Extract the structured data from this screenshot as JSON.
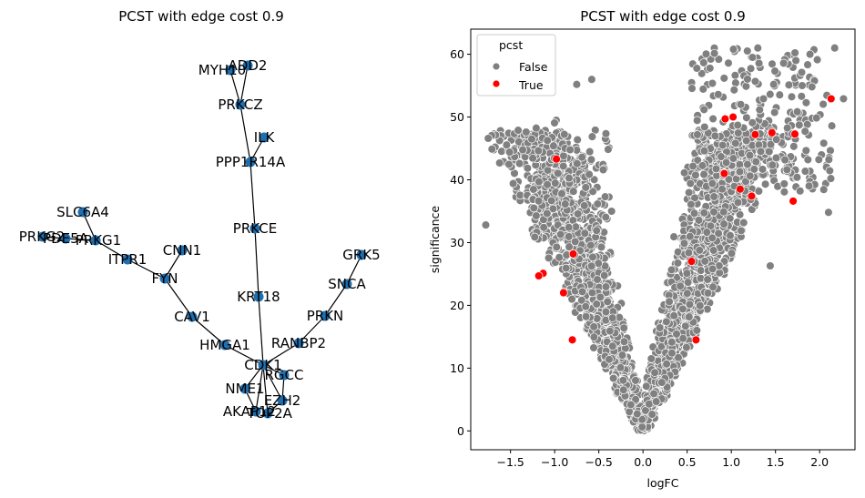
{
  "chart_data": [
    {
      "type": "network",
      "title": "PCST with edge cost 0.9",
      "nodes": [
        "ADD2",
        "MYH10",
        "PRKCZ",
        "ILK",
        "PPP1R14A",
        "PRKCE",
        "KRT18",
        "CDK1",
        "HMGA1",
        "CAV1",
        "FYN",
        "CNN1",
        "ITPR1",
        "PRKG1",
        "PDE5A",
        "PRKG2",
        "SLC6A4",
        "RANBP2",
        "PRKN",
        "SNCA",
        "GRK5",
        "RGCC",
        "NME1",
        "EZH2",
        "AKAP12",
        "TOP2A"
      ],
      "edges": [
        [
          "ADD2",
          "PRKCZ"
        ],
        [
          "MYH10",
          "PRKCZ"
        ],
        [
          "PRKCZ",
          "PPP1R14A"
        ],
        [
          "ILK",
          "PPP1R14A"
        ],
        [
          "PPP1R14A",
          "PRKCE"
        ],
        [
          "PRKCE",
          "KRT18"
        ],
        [
          "KRT18",
          "CDK1"
        ],
        [
          "CDK1",
          "HMGA1"
        ],
        [
          "HMGA1",
          "CAV1"
        ],
        [
          "CAV1",
          "FYN"
        ],
        [
          "FYN",
          "CNN1"
        ],
        [
          "FYN",
          "ITPR1"
        ],
        [
          "ITPR1",
          "PRKG1"
        ],
        [
          "PRKG1",
          "SLC6A4"
        ],
        [
          "PRKG1",
          "PDE5A"
        ],
        [
          "PDE5A",
          "PRKG2"
        ],
        [
          "CDK1",
          "RANBP2"
        ],
        [
          "RANBP2",
          "PRKN"
        ],
        [
          "PRKN",
          "SNCA"
        ],
        [
          "SNCA",
          "GRK5"
        ],
        [
          "CDK1",
          "RGCC"
        ],
        [
          "CDK1",
          "NME1"
        ],
        [
          "CDK1",
          "EZH2"
        ],
        [
          "CDK1",
          "AKAP12"
        ],
        [
          "CDK1",
          "TOP2A"
        ],
        [
          "NME1",
          "AKAP12"
        ],
        [
          "RGCC",
          "EZH2"
        ],
        [
          "EZH2",
          "TOP2A"
        ]
      ]
    },
    {
      "type": "scatter",
      "title": "PCST with edge cost 0.9",
      "xlabel": "logFC",
      "ylabel": "significance",
      "xlim": [
        -1.95,
        2.4
      ],
      "ylim": [
        -3,
        64
      ],
      "xticks": [
        -1.5,
        -1.0,
        -0.5,
        0.0,
        0.5,
        1.0,
        1.5,
        2.0
      ],
      "xtick_labels": [
        "−1.5",
        "−1.0",
        "−0.5",
        "0.0",
        "0.5",
        "1.0",
        "1.5",
        "2.0"
      ],
      "yticks": [
        0,
        10,
        20,
        30,
        40,
        50,
        60
      ],
      "yticks_labels": [
        "0",
        "10",
        "20",
        "30",
        "40",
        "50",
        "60"
      ],
      "legend": {
        "title": "pcst",
        "placement": "top-left",
        "entries": [
          {
            "label": "False",
            "color": "#808080"
          },
          {
            "label": "True",
            "color": "#ff0000"
          }
        ]
      },
      "series": [
        {
          "name": "True",
          "color": "#ff0000",
          "x": [
            2.13,
            1.02,
            0.93,
            1.46,
            1.72,
            1.27,
            1.23,
            1.7,
            -1.13,
            -1.18,
            -0.79,
            -0.98,
            -0.8,
            0.6,
            0.92,
            -0.9,
            0.55,
            1.1
          ],
          "y": [
            52.9,
            50.0,
            49.7,
            47.5,
            47.3,
            47.2,
            37.4,
            36.6,
            25.1,
            24.7,
            28.2,
            43.3,
            14.5,
            14.5,
            41.0,
            22.0,
            27.0,
            38.5
          ]
        },
        {
          "name": "False",
          "color": "#808080",
          "description": "volcano-shaped cloud of ~2000 genes, |logFC| grows with significance",
          "extremes": [
            {
              "x": -1.78,
              "y": 32.8
            },
            {
              "x": -1.47,
              "y": 39.4
            },
            {
              "x": -0.58,
              "y": 56.0
            },
            {
              "x": -0.75,
              "y": 55.2
            },
            {
              "x": 1.44,
              "y": 26.3
            },
            {
              "x": 2.1,
              "y": 34.8
            },
            {
              "x": 2.27,
              "y": 52.9
            },
            {
              "x": 2.17,
              "y": 61.0
            },
            {
              "x": 1.3,
              "y": 61.0
            }
          ]
        }
      ]
    }
  ]
}
